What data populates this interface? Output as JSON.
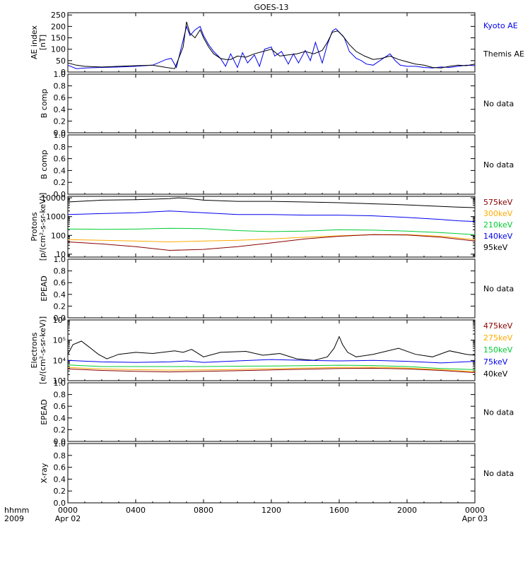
{
  "title": "GOES-13",
  "time_axis": {
    "corner_top": "hhmm",
    "corner_bottom": "2009",
    "ticks": [
      {
        "hour": 0,
        "label": "0000",
        "sub": "Apr 02"
      },
      {
        "hour": 4,
        "label": "0400",
        "sub": ""
      },
      {
        "hour": 8,
        "label": "0800",
        "sub": ""
      },
      {
        "hour": 12,
        "label": "1200",
        "sub": ""
      },
      {
        "hour": 16,
        "label": "1600",
        "sub": ""
      },
      {
        "hour": 20,
        "label": "2000",
        "sub": ""
      },
      {
        "hour": 24,
        "label": "0000",
        "sub": "Apr 03"
      }
    ]
  },
  "colors": {
    "black": "#000000",
    "blue": "#0000ee",
    "green": "#00cc33",
    "orange": "#ffaa00",
    "darkred": "#880000"
  },
  "chart_data": [
    {
      "type": "line",
      "ylabel": [
        "AE index",
        "[nT]"
      ],
      "yscale": "linear",
      "ylim": [
        0,
        260
      ],
      "yticks": [
        0,
        50,
        100,
        150,
        200,
        250
      ],
      "ytick_labels": [
        "0",
        "50",
        "100",
        "150",
        "200",
        "250"
      ],
      "legend": [
        {
          "name": "Kyoto AE",
          "color": "#0000ee"
        },
        {
          "name": "Themis AE",
          "color": "#000000"
        }
      ],
      "series": [
        {
          "name": "Kyoto AE",
          "color": "#0000ee",
          "x": [
            0,
            0.5,
            1,
            2,
            3,
            4,
            5,
            5.8,
            6.1,
            6.4,
            6.8,
            7.0,
            7.2,
            7.5,
            7.8,
            8.0,
            8.3,
            8.6,
            9.0,
            9.3,
            9.6,
            10.0,
            10.3,
            10.6,
            11.0,
            11.3,
            11.6,
            12.0,
            12.2,
            12.6,
            13.0,
            13.3,
            13.6,
            14.0,
            14.3,
            14.6,
            15.0,
            15.3,
            15.6,
            15.8,
            16.0,
            16.3,
            16.6,
            17.0,
            17.3,
            17.6,
            18.0,
            18.5,
            19.0,
            19.3,
            19.6,
            20.0,
            20.5,
            21.0,
            21.5,
            22.0,
            22.5,
            23.0,
            23.5,
            24
          ],
          "y": [
            30,
            15,
            18,
            20,
            22,
            25,
            30,
            55,
            60,
            20,
            140,
            200,
            160,
            185,
            200,
            160,
            120,
            90,
            60,
            25,
            80,
            20,
            85,
            40,
            75,
            25,
            100,
            110,
            70,
            90,
            35,
            80,
            40,
            95,
            50,
            130,
            40,
            120,
            180,
            190,
            175,
            150,
            90,
            60,
            50,
            35,
            30,
            55,
            80,
            50,
            30,
            25,
            25,
            20,
            18,
            22,
            20,
            25,
            30,
            28
          ]
        },
        {
          "name": "Themis AE",
          "color": "#000000",
          "x": [
            0,
            0.5,
            1,
            2,
            3,
            4,
            5,
            5.8,
            6.3,
            6.8,
            7.0,
            7.2,
            7.5,
            7.8,
            8.0,
            8.3,
            8.6,
            9.0,
            9.3,
            9.6,
            10.0,
            10.5,
            11.0,
            11.5,
            12.0,
            12.5,
            13.0,
            13.5,
            14.0,
            14.5,
            15.0,
            15.3,
            15.6,
            15.9,
            16.2,
            16.6,
            17.0,
            17.5,
            18.0,
            18.5,
            19.0,
            19.5,
            20.0,
            20.5,
            21.0,
            21.5,
            22.0,
            22.5,
            23.0,
            23.5,
            24
          ],
          "y": [
            40,
            30,
            25,
            22,
            25,
            28,
            30,
            20,
            15,
            110,
            220,
            170,
            150,
            185,
            150,
            110,
            80,
            60,
            55,
            55,
            70,
            65,
            80,
            90,
            100,
            70,
            75,
            80,
            90,
            80,
            95,
            130,
            175,
            180,
            160,
            120,
            90,
            70,
            55,
            60,
            70,
            55,
            45,
            35,
            30,
            20,
            18,
            25,
            30,
            28,
            35
          ]
        }
      ]
    },
    {
      "type": "line",
      "ylabel": [
        "B comp"
      ],
      "yscale": "linear",
      "ylim": [
        0,
        1
      ],
      "yticks": [
        0,
        0.2,
        0.4,
        0.6,
        0.8,
        1.0
      ],
      "ytick_labels": [
        "0.0",
        "0.2",
        "0.4",
        "0.6",
        "0.8",
        "1.0"
      ],
      "legend": [
        {
          "name": "No data",
          "color": "#000000"
        }
      ],
      "series": []
    },
    {
      "type": "line",
      "ylabel": [
        "B comp"
      ],
      "yscale": "linear",
      "ylim": [
        0,
        1
      ],
      "yticks": [
        0,
        0.2,
        0.4,
        0.6,
        0.8,
        1.0
      ],
      "ytick_labels": [
        "0.0",
        "0.2",
        "0.4",
        "0.6",
        "0.8",
        "1.0"
      ],
      "legend": [
        {
          "name": "No data",
          "color": "#000000"
        }
      ],
      "series": []
    },
    {
      "type": "line",
      "ylabel": [
        "Protons",
        "[p/(cm²-s-sr-keV)]"
      ],
      "yscale": "log",
      "ylim": [
        7,
        12000
      ],
      "yticks": [
        10,
        100,
        1000,
        10000
      ],
      "ytick_labels": [
        "10",
        "100",
        "1000",
        "10000"
      ],
      "legend": [
        {
          "name": "575keV",
          "color": "#880000"
        },
        {
          "name": "300keV",
          "color": "#ffaa00"
        },
        {
          "name": "210keV",
          "color": "#00cc33"
        },
        {
          "name": "140keV",
          "color": "#0000ee"
        },
        {
          "name": "95keV",
          "color": "#000000"
        }
      ],
      "series": [
        {
          "name": "95keV",
          "color": "#000000",
          "x": [
            0,
            2,
            4,
            6,
            6.5,
            7,
            8,
            10,
            12,
            14,
            16,
            18,
            19,
            20,
            22,
            23,
            24
          ],
          "y": [
            6000,
            7500,
            8000,
            9000,
            10000,
            9500,
            7500,
            6500,
            6500,
            6000,
            5500,
            4800,
            4500,
            4200,
            3500,
            3200,
            3000
          ]
        },
        {
          "name": "140keV",
          "color": "#0000ee",
          "x": [
            0,
            2,
            4,
            6,
            8,
            10,
            12,
            14,
            16,
            18,
            19,
            20,
            22,
            23,
            24
          ],
          "y": [
            1300,
            1450,
            1600,
            2000,
            1600,
            1300,
            1300,
            1200,
            1200,
            1100,
            1000,
            900,
            700,
            600,
            550
          ]
        },
        {
          "name": "210keV",
          "color": "#00cc33",
          "x": [
            0,
            2,
            4,
            6,
            8,
            10,
            12,
            14,
            16,
            18,
            20,
            22,
            24
          ],
          "y": [
            220,
            210,
            215,
            240,
            230,
            180,
            160,
            170,
            200,
            190,
            170,
            140,
            110
          ]
        },
        {
          "name": "300keV",
          "color": "#ffaa00",
          "x": [
            0,
            2,
            4,
            6,
            8,
            10,
            12,
            14,
            16,
            18,
            20,
            22,
            24
          ],
          "y": [
            60,
            55,
            50,
            45,
            50,
            55,
            65,
            80,
            95,
            110,
            110,
            90,
            60
          ]
        },
        {
          "name": "575keV",
          "color": "#880000",
          "x": [
            0,
            2,
            4,
            6,
            8,
            10,
            12,
            14,
            16,
            18,
            20,
            22,
            24
          ],
          "y": [
            45,
            35,
            25,
            16,
            18,
            25,
            40,
            65,
            90,
            110,
            105,
            80,
            50
          ]
        }
      ]
    },
    {
      "type": "line",
      "ylabel": [
        "EPEAD"
      ],
      "yscale": "linear",
      "ylim": [
        0,
        1
      ],
      "yticks": [
        0,
        0.2,
        0.4,
        0.6,
        0.8,
        1.0
      ],
      "ytick_labels": [
        "0.0",
        "0.2",
        "0.4",
        "0.6",
        "0.8",
        "1.0"
      ],
      "legend": [
        {
          "name": "No data",
          "color": "#000000"
        }
      ],
      "series": []
    },
    {
      "type": "line",
      "ylabel": [
        "Electrons",
        "[e/(cm²-s-sr-keV)]"
      ],
      "yscale": "log",
      "ylim": [
        1000,
        1000000
      ],
      "yticks": [
        1000,
        10000,
        100000,
        1000000
      ],
      "ytick_labels": [
        "10³",
        "10⁴",
        "10⁵",
        "10⁶"
      ],
      "legend": [
        {
          "name": "475keV",
          "color": "#880000"
        },
        {
          "name": "275keV",
          "color": "#ffaa00"
        },
        {
          "name": "150keV",
          "color": "#00cc33"
        },
        {
          "name": "75keV",
          "color": "#0000ee"
        },
        {
          "name": "40keV",
          "color": "#000000"
        }
      ],
      "series": [
        {
          "name": "40keV",
          "color": "#000000",
          "x": [
            0,
            0.3,
            0.8,
            1.2,
            1.8,
            2.3,
            3,
            4,
            5,
            6.3,
            6.8,
            7.3,
            8,
            9,
            10.5,
            11.5,
            12.5,
            13.5,
            14.5,
            15.3,
            15.7,
            16.0,
            16.2,
            16.5,
            17,
            18,
            19.5,
            20.5,
            21.5,
            22.5,
            23.5,
            24
          ],
          "y": [
            20000,
            60000,
            90000,
            50000,
            20000,
            12000,
            20000,
            25000,
            22000,
            30000,
            25000,
            35000,
            15000,
            25000,
            28000,
            18000,
            22000,
            12000,
            10000,
            15000,
            40000,
            150000,
            60000,
            25000,
            15000,
            20000,
            40000,
            20000,
            15000,
            30000,
            20000,
            18000
          ]
        },
        {
          "name": "75keV",
          "color": "#0000ee",
          "x": [
            0,
            2,
            4,
            6,
            7,
            8,
            10,
            12,
            14,
            16,
            18,
            20,
            22,
            24
          ],
          "y": [
            10000,
            8500,
            8000,
            8500,
            9500,
            8000,
            9500,
            11000,
            10000,
            9500,
            10000,
            9000,
            7500,
            9000
          ]
        },
        {
          "name": "150keV",
          "color": "#00cc33",
          "x": [
            0,
            2,
            4,
            6,
            8,
            10,
            12,
            14,
            16,
            18,
            20,
            22,
            24
          ],
          "y": [
            6000,
            5000,
            5000,
            5000,
            5000,
            5200,
            5300,
            5500,
            5800,
            5600,
            5000,
            4000,
            3500
          ]
        },
        {
          "name": "275keV",
          "color": "#ffaa00",
          "x": [
            0,
            2,
            4,
            6,
            8,
            10,
            12,
            14,
            16,
            18,
            20,
            22,
            24
          ],
          "y": [
            4500,
            3800,
            3500,
            3300,
            3400,
            3600,
            3900,
            4200,
            4500,
            4600,
            4200,
            3500,
            2800
          ]
        },
        {
          "name": "475keV",
          "color": "#880000",
          "x": [
            0,
            2,
            4,
            6,
            8,
            10,
            12,
            14,
            16,
            18,
            20,
            22,
            24
          ],
          "y": [
            3800,
            3200,
            2900,
            2700,
            2900,
            3100,
            3400,
            3700,
            4000,
            4100,
            3800,
            3200,
            2500
          ]
        }
      ]
    },
    {
      "type": "line",
      "ylabel": [
        "EPEAD"
      ],
      "yscale": "linear",
      "ylim": [
        0,
        1
      ],
      "yticks": [
        0,
        0.2,
        0.4,
        0.6,
        0.8,
        1.0
      ],
      "ytick_labels": [
        "0.0",
        "0.2",
        "0.4",
        "0.6",
        "0.8",
        "1.0"
      ],
      "legend": [
        {
          "name": "No data",
          "color": "#000000"
        }
      ],
      "series": []
    },
    {
      "type": "line",
      "ylabel": [
        "X-ray"
      ],
      "yscale": "linear",
      "ylim": [
        0,
        1
      ],
      "yticks": [
        0,
        0.2,
        0.4,
        0.6,
        0.8,
        1.0
      ],
      "ytick_labels": [
        "0.0",
        "0.2",
        "0.4",
        "0.6",
        "0.8",
        "1.0"
      ],
      "legend": [
        {
          "name": "No data",
          "color": "#000000"
        }
      ],
      "series": []
    }
  ]
}
